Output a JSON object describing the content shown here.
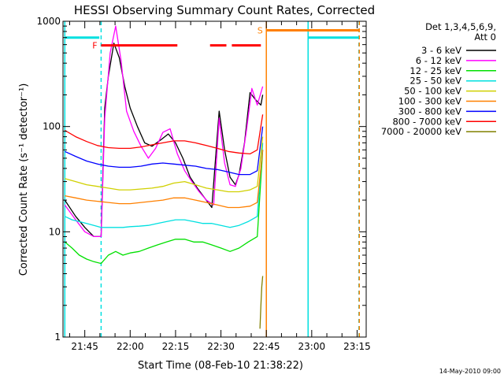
{
  "chart_data": {
    "type": "line",
    "title": "HESSI Observing Summary Count Rates, Corrected",
    "xlabel": "Start Time (08-Feb-10 21:38:22)",
    "ylabel": "Corrected Count Rate (s⁻¹ detector⁻¹)",
    "y_scale": "log",
    "ylim": [
      1,
      1000
    ],
    "xlim_minutes": [
      21.63,
      23.3
    ],
    "x_ticks": [
      {
        "h": 21.75,
        "label": "21:45"
      },
      {
        "h": 22.0,
        "label": "22:00"
      },
      {
        "h": 22.25,
        "label": "22:15"
      },
      {
        "h": 22.5,
        "label": "22:30"
      },
      {
        "h": 22.75,
        "label": "22:45"
      },
      {
        "h": 23.0,
        "label": "23:00"
      },
      {
        "h": 23.25,
        "label": "23:15"
      }
    ],
    "y_ticks": [
      {
        "v": 1,
        "label": "1"
      },
      {
        "v": 10,
        "label": "10"
      },
      {
        "v": 100,
        "label": "100"
      },
      {
        "v": 1000,
        "label": "1000"
      }
    ],
    "legend_header": [
      "Det 1,3,4,5,6,9,",
      "Att 0"
    ],
    "legend_placement": "right",
    "timestamp": "14-May-2010 09:00",
    "series": [
      {
        "name": "3 - 6 keV",
        "color": "#000000",
        "points": [
          [
            21.64,
            20
          ],
          [
            21.7,
            14
          ],
          [
            21.75,
            11
          ],
          [
            21.8,
            9
          ],
          [
            21.84,
            9
          ],
          [
            21.86,
            150
          ],
          [
            21.88,
            300
          ],
          [
            21.91,
            620
          ],
          [
            21.94,
            450
          ],
          [
            21.97,
            240
          ],
          [
            22.0,
            150
          ],
          [
            22.04,
            100
          ],
          [
            22.08,
            70
          ],
          [
            22.12,
            65
          ],
          [
            22.17,
            75
          ],
          [
            22.21,
            85
          ],
          [
            22.25,
            70
          ],
          [
            22.29,
            50
          ],
          [
            22.33,
            33
          ],
          [
            22.37,
            26
          ],
          [
            22.41,
            21
          ],
          [
            22.45,
            17
          ],
          [
            22.49,
            140
          ],
          [
            22.52,
            60
          ],
          [
            22.55,
            33
          ],
          [
            22.58,
            28
          ],
          [
            22.6,
            35
          ],
          [
            22.63,
            70
          ],
          [
            22.66,
            210
          ],
          [
            22.69,
            180
          ],
          [
            22.72,
            160
          ],
          [
            22.73,
            200
          ]
        ]
      },
      {
        "name": "6 - 12 keV",
        "color": "#ff00ff",
        "points": [
          [
            21.64,
            18
          ],
          [
            21.7,
            13
          ],
          [
            21.75,
            10
          ],
          [
            21.8,
            9
          ],
          [
            21.84,
            9
          ],
          [
            21.86,
            120
          ],
          [
            21.89,
            500
          ],
          [
            21.92,
            900
          ],
          [
            21.95,
            420
          ],
          [
            21.98,
            140
          ],
          [
            22.02,
            90
          ],
          [
            22.06,
            65
          ],
          [
            22.1,
            50
          ],
          [
            22.14,
            62
          ],
          [
            22.18,
            88
          ],
          [
            22.22,
            95
          ],
          [
            22.26,
            55
          ],
          [
            22.3,
            38
          ],
          [
            22.34,
            30
          ],
          [
            22.38,
            24
          ],
          [
            22.42,
            20
          ],
          [
            22.46,
            18
          ],
          [
            22.49,
            120
          ],
          [
            22.52,
            45
          ],
          [
            22.55,
            28
          ],
          [
            22.58,
            27
          ],
          [
            22.61,
            40
          ],
          [
            22.64,
            90
          ],
          [
            22.67,
            230
          ],
          [
            22.7,
            160
          ],
          [
            22.73,
            240
          ]
        ]
      },
      {
        "name": "12 - 25 keV",
        "color": "#00e000",
        "points": [
          [
            21.64,
            8
          ],
          [
            21.68,
            7
          ],
          [
            21.72,
            6
          ],
          [
            21.76,
            5.5
          ],
          [
            21.8,
            5.2
          ],
          [
            21.84,
            5
          ],
          [
            21.88,
            6
          ],
          [
            21.92,
            6.5
          ],
          [
            21.96,
            6
          ],
          [
            22.0,
            6.3
          ],
          [
            22.05,
            6.5
          ],
          [
            22.1,
            7
          ],
          [
            22.15,
            7.5
          ],
          [
            22.2,
            8
          ],
          [
            22.25,
            8.5
          ],
          [
            22.3,
            8.5
          ],
          [
            22.35,
            8
          ],
          [
            22.4,
            8
          ],
          [
            22.45,
            7.5
          ],
          [
            22.5,
            7
          ],
          [
            22.55,
            6.5
          ],
          [
            22.6,
            7
          ],
          [
            22.65,
            8
          ],
          [
            22.7,
            9
          ],
          [
            22.73,
            60
          ]
        ]
      },
      {
        "name": "25 - 50 keV",
        "color": "#00e0e0",
        "points": [
          [
            21.64,
            14
          ],
          [
            21.68,
            13
          ],
          [
            21.72,
            12.5
          ],
          [
            21.76,
            12
          ],
          [
            21.8,
            11.5
          ],
          [
            21.84,
            11
          ],
          [
            21.88,
            11
          ],
          [
            21.92,
            11
          ],
          [
            21.96,
            11
          ],
          [
            22.0,
            11.2
          ],
          [
            22.05,
            11.3
          ],
          [
            22.1,
            11.5
          ],
          [
            22.15,
            12
          ],
          [
            22.2,
            12.5
          ],
          [
            22.25,
            13
          ],
          [
            22.3,
            13
          ],
          [
            22.35,
            12.5
          ],
          [
            22.4,
            12
          ],
          [
            22.45,
            12
          ],
          [
            22.5,
            11.5
          ],
          [
            22.55,
            11
          ],
          [
            22.6,
            11.5
          ],
          [
            22.65,
            12.5
          ],
          [
            22.7,
            14
          ],
          [
            22.73,
            70
          ]
        ]
      },
      {
        "name": "50 - 100 keV",
        "color": "#d0d000",
        "points": [
          [
            21.64,
            32
          ],
          [
            21.7,
            30
          ],
          [
            21.76,
            28
          ],
          [
            21.82,
            27
          ],
          [
            21.88,
            26
          ],
          [
            21.94,
            25
          ],
          [
            22.0,
            25
          ],
          [
            22.06,
            25.5
          ],
          [
            22.12,
            26
          ],
          [
            22.18,
            27
          ],
          [
            22.24,
            29
          ],
          [
            22.3,
            30
          ],
          [
            22.36,
            28
          ],
          [
            22.42,
            26
          ],
          [
            22.48,
            25
          ],
          [
            22.54,
            24
          ],
          [
            22.6,
            24
          ],
          [
            22.66,
            25
          ],
          [
            22.7,
            27
          ],
          [
            22.73,
            80
          ]
        ]
      },
      {
        "name": "100 - 300 keV",
        "color": "#ff8000",
        "points": [
          [
            21.64,
            22
          ],
          [
            21.7,
            21
          ],
          [
            21.76,
            20
          ],
          [
            21.82,
            19.5
          ],
          [
            21.88,
            19
          ],
          [
            21.94,
            18.5
          ],
          [
            22.0,
            18.5
          ],
          [
            22.06,
            19
          ],
          [
            22.12,
            19.5
          ],
          [
            22.18,
            20
          ],
          [
            22.24,
            21
          ],
          [
            22.3,
            21
          ],
          [
            22.36,
            20
          ],
          [
            22.42,
            19
          ],
          [
            22.48,
            18
          ],
          [
            22.54,
            17
          ],
          [
            22.6,
            17
          ],
          [
            22.66,
            17.5
          ],
          [
            22.7,
            19
          ],
          [
            22.73,
            60
          ]
        ]
      },
      {
        "name": "300 - 800 keV",
        "color": "#0000ff",
        "points": [
          [
            21.64,
            58
          ],
          [
            21.7,
            52
          ],
          [
            21.76,
            47
          ],
          [
            21.82,
            44
          ],
          [
            21.88,
            42
          ],
          [
            21.94,
            41
          ],
          [
            22.0,
            41
          ],
          [
            22.06,
            42
          ],
          [
            22.12,
            44
          ],
          [
            22.18,
            45
          ],
          [
            22.24,
            44
          ],
          [
            22.3,
            43
          ],
          [
            22.36,
            42
          ],
          [
            22.42,
            40
          ],
          [
            22.48,
            39
          ],
          [
            22.54,
            37
          ],
          [
            22.6,
            35
          ],
          [
            22.66,
            35
          ],
          [
            22.7,
            38
          ],
          [
            22.73,
            100
          ]
        ]
      },
      {
        "name": "800 - 7000 keV",
        "color": "#ff0000",
        "points": [
          [
            21.64,
            92
          ],
          [
            21.7,
            80
          ],
          [
            21.76,
            72
          ],
          [
            21.82,
            66
          ],
          [
            21.88,
            63
          ],
          [
            21.94,
            62
          ],
          [
            22.0,
            62
          ],
          [
            22.06,
            64
          ],
          [
            22.12,
            67
          ],
          [
            22.18,
            70
          ],
          [
            22.24,
            73
          ],
          [
            22.3,
            73
          ],
          [
            22.36,
            70
          ],
          [
            22.42,
            66
          ],
          [
            22.48,
            62
          ],
          [
            22.54,
            58
          ],
          [
            22.6,
            56
          ],
          [
            22.66,
            55
          ],
          [
            22.7,
            60
          ],
          [
            22.73,
            130
          ]
        ]
      },
      {
        "name": "7000 - 20000 keV",
        "color": "#808000",
        "points": [
          [
            22.715,
            1.2
          ],
          [
            22.72,
            2
          ],
          [
            22.725,
            3
          ],
          [
            22.73,
            3.8
          ]
        ]
      }
    ],
    "attenuator_spans": [
      {
        "label": "",
        "color": "#00e0e0",
        "y": 700,
        "from": 21.64,
        "to": 21.83
      },
      {
        "label": "",
        "color": "#00e0e0",
        "y": 700,
        "from": 22.98,
        "to": 23.26
      }
    ],
    "flag_bars": [
      {
        "label": "F",
        "color": "#ff0000",
        "y": 590,
        "segments": [
          [
            21.84,
            22.26
          ],
          [
            22.44,
            22.53
          ],
          [
            22.56,
            22.72
          ]
        ]
      },
      {
        "label": "S",
        "color": "#ff8000",
        "y": 820,
        "segments": [
          [
            22.75,
            23.26
          ]
        ]
      }
    ],
    "vertical_markers": [
      {
        "x": 21.64,
        "color": "#00e0e0",
        "style": "solid"
      },
      {
        "x": 21.84,
        "color": "#00e0e0",
        "style": "dashed"
      },
      {
        "x": 22.75,
        "color": "#ff8000",
        "style": "solid"
      },
      {
        "x": 22.98,
        "color": "#00e0e0",
        "style": "solid"
      },
      {
        "x": 23.26,
        "color": "#00e0e0",
        "style": "dashed"
      },
      {
        "x": 23.262,
        "color": "#ff8000",
        "style": "dashed"
      }
    ]
  }
}
